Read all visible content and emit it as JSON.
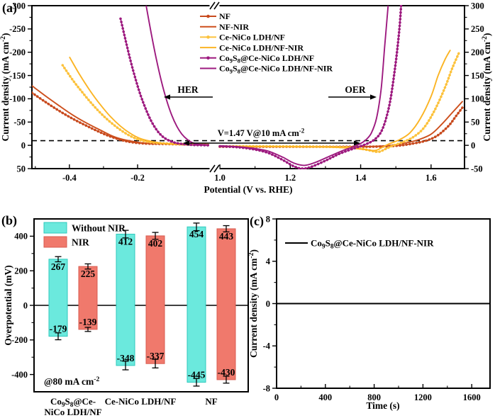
{
  "labels": {
    "a": "(a)",
    "b": "(b)",
    "c": "(c)"
  },
  "colors": {
    "nf": "#cd4f1c",
    "nf_marker": "#c84a1e",
    "ce_nico": "#fbb424",
    "ce_nico_marker": "#fcc23d",
    "co9s8": "#9d1a7f",
    "without_nir_bar": "#6be9dd",
    "without_nir_edge": "#2fc9bd",
    "nir_bar": "#f0796c",
    "nir_edge": "#d95c50",
    "axis": "#000000",
    "error_bar": "#000000",
    "dashed_line": "#000000",
    "stability_line": "#000000"
  },
  "chart_data": [
    {
      "id": "a",
      "type": "line",
      "xlabel": "Potential (V vs. RHE)",
      "ylabel_left": "Current density (mA cm^{-2})",
      "ylabel_right": "Current density (mA cm^{-2})",
      "ylim_left": [
        -300,
        50
      ],
      "ylim_right": [
        300,
        -50
      ],
      "yticks_left": [
        "-300",
        "-250",
        "-200",
        "-150",
        "-100",
        "-50",
        "0",
        "50"
      ],
      "yticks_right": [
        "300",
        "250",
        "200",
        "150",
        "100",
        "50",
        "0",
        "-50"
      ],
      "xlim_left": [
        -0.51,
        0.01
      ],
      "xlim_right": [
        1.0,
        1.695
      ],
      "xticks_left": {
        "values": [
          -0.4,
          -0.2
        ],
        "labels": [
          "-0.4",
          "-0.2"
        ],
        "minor": [
          -0.5,
          -0.3,
          -0.1
        ]
      },
      "xticks_right": {
        "values": [
          1.0,
          1.2,
          1.4,
          1.6
        ],
        "labels": [
          "1.0",
          "1.2",
          "1.4",
          "1.6"
        ],
        "minor": [
          1.1,
          1.3,
          1.5
        ]
      },
      "dashed_current": 10,
      "annotations": {
        "her": "HER",
        "oer": "OER",
        "voltage": "V=1.47 V@10 mA cm^{-2}"
      },
      "series": [
        {
          "name": "NF",
          "color": "#c84a1e",
          "marker": true,
          "her": [
            [
              -0.51,
              -113
            ],
            [
              -0.47,
              -93
            ],
            [
              -0.43,
              -74
            ],
            [
              -0.39,
              -57
            ],
            [
              -0.35,
              -42
            ],
            [
              -0.31,
              -28
            ],
            [
              -0.28,
              -19
            ],
            [
              -0.25,
              -12
            ],
            [
              -0.22,
              -7
            ],
            [
              -0.18,
              -4
            ],
            [
              -0.12,
              -3
            ],
            [
              -0.05,
              -2
            ],
            [
              0.01,
              -2
            ]
          ],
          "oer": [
            [
              1.0,
              -3
            ],
            [
              1.15,
              -3
            ],
            [
              1.3,
              -3
            ],
            [
              1.42,
              -3
            ],
            [
              1.5,
              -1
            ],
            [
              1.55,
              4
            ],
            [
              1.59,
              11
            ],
            [
              1.62,
              22
            ],
            [
              1.65,
              42
            ],
            [
              1.67,
              62
            ],
            [
              1.69,
              82
            ]
          ]
        },
        {
          "name": "NF-NIR",
          "color": "#cd4f1c",
          "marker": false,
          "her": [
            [
              -0.51,
              -128
            ],
            [
              -0.47,
              -106
            ],
            [
              -0.43,
              -85
            ],
            [
              -0.39,
              -65
            ],
            [
              -0.35,
              -48
            ],
            [
              -0.31,
              -33
            ],
            [
              -0.28,
              -22
            ],
            [
              -0.25,
              -14
            ],
            [
              -0.21,
              -8
            ],
            [
              -0.17,
              -4
            ],
            [
              -0.1,
              -3
            ],
            [
              0.01,
              -2
            ]
          ],
          "oer": [
            [
              1.0,
              -3
            ],
            [
              1.2,
              -3
            ],
            [
              1.38,
              -3
            ],
            [
              1.47,
              -1
            ],
            [
              1.52,
              4
            ],
            [
              1.56,
              11
            ],
            [
              1.6,
              24
            ],
            [
              1.63,
              45
            ],
            [
              1.66,
              70
            ],
            [
              1.69,
              95
            ]
          ]
        },
        {
          "name": "Ce-NiCo LDH/NF",
          "color": "#fcc23d",
          "marker": true,
          "her": [
            [
              -0.42,
              -172
            ],
            [
              -0.39,
              -140
            ],
            [
              -0.36,
              -112
            ],
            [
              -0.33,
              -86
            ],
            [
              -0.3,
              -63
            ],
            [
              -0.27,
              -44
            ],
            [
              -0.24,
              -28
            ],
            [
              -0.21,
              -16
            ],
            [
              -0.18,
              -9
            ],
            [
              -0.14,
              -5
            ],
            [
              -0.08,
              -3
            ],
            [
              0.01,
              -2
            ]
          ],
          "oer": [
            [
              1.0,
              -2
            ],
            [
              1.15,
              -2
            ],
            [
              1.3,
              -3
            ],
            [
              1.38,
              -5
            ],
            [
              1.42,
              -10
            ],
            [
              1.45,
              -14
            ],
            [
              1.47,
              -8
            ],
            [
              1.49,
              -1
            ],
            [
              1.52,
              7
            ],
            [
              1.55,
              18
            ],
            [
              1.58,
              38
            ],
            [
              1.61,
              75
            ],
            [
              1.64,
              125
            ],
            [
              1.66,
              165
            ],
            [
              1.68,
              200
            ]
          ]
        },
        {
          "name": "Ce-NiCo LDH/NF-NIR",
          "color": "#fbb424",
          "marker": false,
          "her": [
            [
              -0.4,
              -190
            ],
            [
              -0.37,
              -152
            ],
            [
              -0.34,
              -118
            ],
            [
              -0.31,
              -88
            ],
            [
              -0.28,
              -62
            ],
            [
              -0.25,
              -41
            ],
            [
              -0.22,
              -25
            ],
            [
              -0.19,
              -14
            ],
            [
              -0.15,
              -7
            ],
            [
              -0.11,
              -3
            ],
            [
              -0.05,
              -1
            ],
            [
              0.01,
              -1
            ]
          ],
          "oer": [
            [
              1.0,
              -2
            ],
            [
              1.18,
              -3
            ],
            [
              1.32,
              -4
            ],
            [
              1.4,
              -8
            ],
            [
              1.44,
              -11
            ],
            [
              1.46,
              -5
            ],
            [
              1.48,
              3
            ],
            [
              1.51,
              12
            ],
            [
              1.54,
              27
            ],
            [
              1.57,
              58
            ],
            [
              1.6,
              105
            ],
            [
              1.62,
              150
            ],
            [
              1.64,
              185
            ],
            [
              1.655,
              205
            ]
          ]
        },
        {
          "name": "Co_{9}S_{8}@Ce-NiCo LDH/NF",
          "color": "#9d1a7f",
          "marker": true,
          "her": [
            [
              -0.25,
              -272
            ],
            [
              -0.235,
              -225
            ],
            [
              -0.22,
              -180
            ],
            [
              -0.205,
              -140
            ],
            [
              -0.19,
              -105
            ],
            [
              -0.175,
              -76
            ],
            [
              -0.16,
              -52
            ],
            [
              -0.145,
              -34
            ],
            [
              -0.13,
              -21
            ],
            [
              -0.115,
              -13
            ],
            [
              -0.1,
              -8
            ],
            [
              -0.08,
              -4
            ],
            [
              -0.04,
              -1
            ],
            [
              0.01,
              0
            ]
          ],
          "oer": [
            [
              1.0,
              -2
            ],
            [
              1.05,
              -4
            ],
            [
              1.1,
              -9
            ],
            [
              1.14,
              -17
            ],
            [
              1.18,
              -32
            ],
            [
              1.21,
              -45
            ],
            [
              1.235,
              -50
            ],
            [
              1.26,
              -46
            ],
            [
              1.3,
              -33
            ],
            [
              1.34,
              -18
            ],
            [
              1.38,
              -7
            ],
            [
              1.41,
              1
            ],
            [
              1.435,
              10
            ],
            [
              1.455,
              25
            ],
            [
              1.47,
              52
            ],
            [
              1.485,
              100
            ],
            [
              1.5,
              180
            ],
            [
              1.51,
              250
            ],
            [
              1.515,
              300
            ]
          ]
        },
        {
          "name": "Co_{9}S_{8}@Ce-NiCo LDH/NF-NIR",
          "color": "#9d1a7f",
          "marker": false,
          "her": [
            [
              -0.175,
              -300
            ],
            [
              -0.16,
              -240
            ],
            [
              -0.145,
              -185
            ],
            [
              -0.13,
              -137
            ],
            [
              -0.115,
              -97
            ],
            [
              -0.1,
              -65
            ],
            [
              -0.085,
              -41
            ],
            [
              -0.07,
              -24
            ],
            [
              -0.055,
              -13
            ],
            [
              -0.04,
              -6
            ],
            [
              -0.02,
              -2
            ],
            [
              0.01,
              -1
            ]
          ],
          "oer": [
            [
              1.0,
              -1
            ],
            [
              1.05,
              -3
            ],
            [
              1.1,
              -7
            ],
            [
              1.14,
              -13
            ],
            [
              1.18,
              -26
            ],
            [
              1.21,
              -38
            ],
            [
              1.24,
              -43
            ],
            [
              1.27,
              -37
            ],
            [
              1.31,
              -24
            ],
            [
              1.35,
              -11
            ],
            [
              1.38,
              -3
            ],
            [
              1.4,
              4
            ],
            [
              1.415,
              12
            ],
            [
              1.43,
              26
            ],
            [
              1.445,
              58
            ],
            [
              1.458,
              120
            ],
            [
              1.468,
              210
            ],
            [
              1.478,
              300
            ]
          ]
        }
      ]
    },
    {
      "id": "b",
      "type": "bar",
      "ylabel": "Overpotential (mV)",
      "ylim": [
        -500,
        500
      ],
      "yticks": {
        "values": [
          -400,
          -200,
          0,
          200,
          400
        ],
        "labels": [
          "-400",
          "-200",
          "0",
          "200",
          "400"
        ],
        "minor": [
          -300,
          -100,
          100,
          300
        ]
      },
      "annotation": "@80 mA cm^{-2}",
      "legend": [
        "Without NIR",
        "NIR"
      ],
      "categories": [
        [
          "Co_{9}S_{8}@Ce-",
          "NiCo LDH/NF"
        ],
        [
          "Ce-NiCo LDH/NF"
        ],
        [
          "NF"
        ]
      ],
      "series": [
        {
          "name": "Without NIR",
          "fill": "#6be9dd",
          "edge": "#2fc9bd",
          "oer": [
            267,
            412,
            454
          ],
          "her": [
            -179,
            -348,
            -445
          ],
          "oer_labels": [
            "267",
            "412",
            "454"
          ],
          "her_labels": [
            "-179",
            "-348",
            "-445"
          ],
          "err_oer": [
            15,
            22,
            22
          ],
          "err_her": [
            20,
            25,
            22
          ]
        },
        {
          "name": "NIR",
          "fill": "#f0796c",
          "edge": "#d95c50",
          "oer": [
            225,
            402,
            443
          ],
          "her": [
            -139,
            -337,
            -430
          ],
          "oer_labels": [
            "225",
            "402",
            "443"
          ],
          "her_labels": [
            "-139",
            "-337",
            "-430"
          ],
          "err_oer": [
            15,
            20,
            18
          ],
          "err_her": [
            12,
            25,
            20
          ]
        }
      ]
    },
    {
      "id": "c",
      "type": "line",
      "xlabel": "Time (s)",
      "ylabel": "Current density (mA cm^{-2})",
      "xlim": [
        0,
        1750
      ],
      "xticks": {
        "values": [
          0,
          400,
          800,
          1200,
          1600
        ],
        "labels": [
          "0",
          "400",
          "800",
          "1200",
          "1600"
        ],
        "minor": [
          200,
          600,
          1000,
          1400
        ]
      },
      "ylim": [
        -8,
        8
      ],
      "yticks": {
        "values": [
          -8,
          -4,
          0,
          4,
          8
        ],
        "labels": [
          "-8",
          "-4",
          "0",
          "4",
          "8"
        ],
        "minor": [
          -6,
          -2,
          2,
          6
        ]
      },
      "legend": "Co_{9}S_{8}@Ce-NiCo LDH/NF-NIR",
      "series": [
        {
          "name": "Co_{9}S_{8}@Ce-NiCo LDH/NF-NIR",
          "color": "#000000",
          "points": [
            [
              0,
              0
            ],
            [
              1750,
              0
            ]
          ]
        }
      ]
    }
  ]
}
